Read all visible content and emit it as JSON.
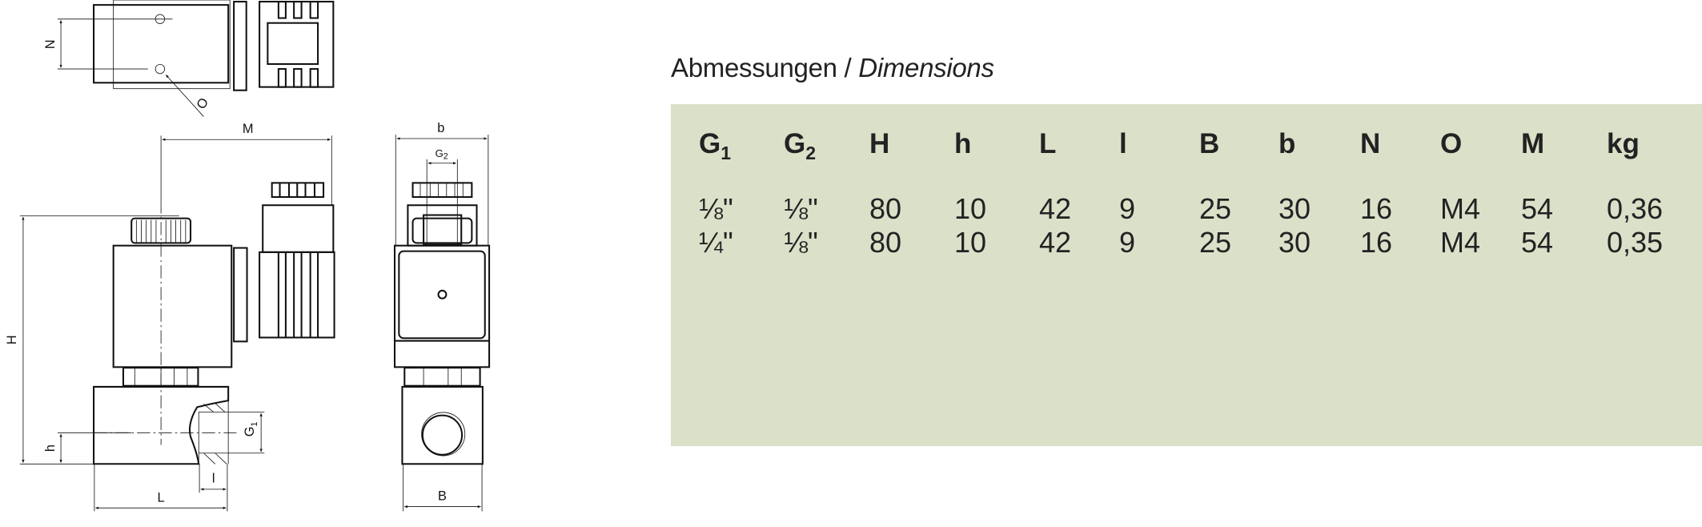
{
  "title": {
    "german": "Abmessungen",
    "separator": " / ",
    "english": "Dimensions"
  },
  "table": {
    "headers": [
      {
        "main": "G",
        "sub": "1"
      },
      {
        "main": "G",
        "sub": "2"
      },
      {
        "main": "H",
        "sub": ""
      },
      {
        "main": "h",
        "sub": ""
      },
      {
        "main": "L",
        "sub": ""
      },
      {
        "main": "l",
        "sub": ""
      },
      {
        "main": "B",
        "sub": ""
      },
      {
        "main": "b",
        "sub": ""
      },
      {
        "main": "N",
        "sub": ""
      },
      {
        "main": "O",
        "sub": ""
      },
      {
        "main": "M",
        "sub": ""
      },
      {
        "main": "kg",
        "sub": ""
      }
    ],
    "rows": [
      [
        "⅛\"",
        "⅛\"",
        "80",
        "10",
        "42",
        "9",
        "25",
        "30",
        "16",
        "M4",
        "54",
        "0,36"
      ],
      [
        "¼\"",
        "⅛\"",
        "80",
        "10",
        "42",
        "9",
        "25",
        "30",
        "16",
        "M4",
        "54",
        "0,35"
      ]
    ],
    "background_color": "#dbe0c9"
  },
  "drawing": {
    "labels": {
      "N": "N",
      "O": "O",
      "M": "M",
      "H": "H",
      "h": "h",
      "G1": "G",
      "G1_sub": "1",
      "l": "l",
      "L": "L",
      "b": "b",
      "G2": "G",
      "G2_sub": "2",
      "B": "B"
    }
  }
}
